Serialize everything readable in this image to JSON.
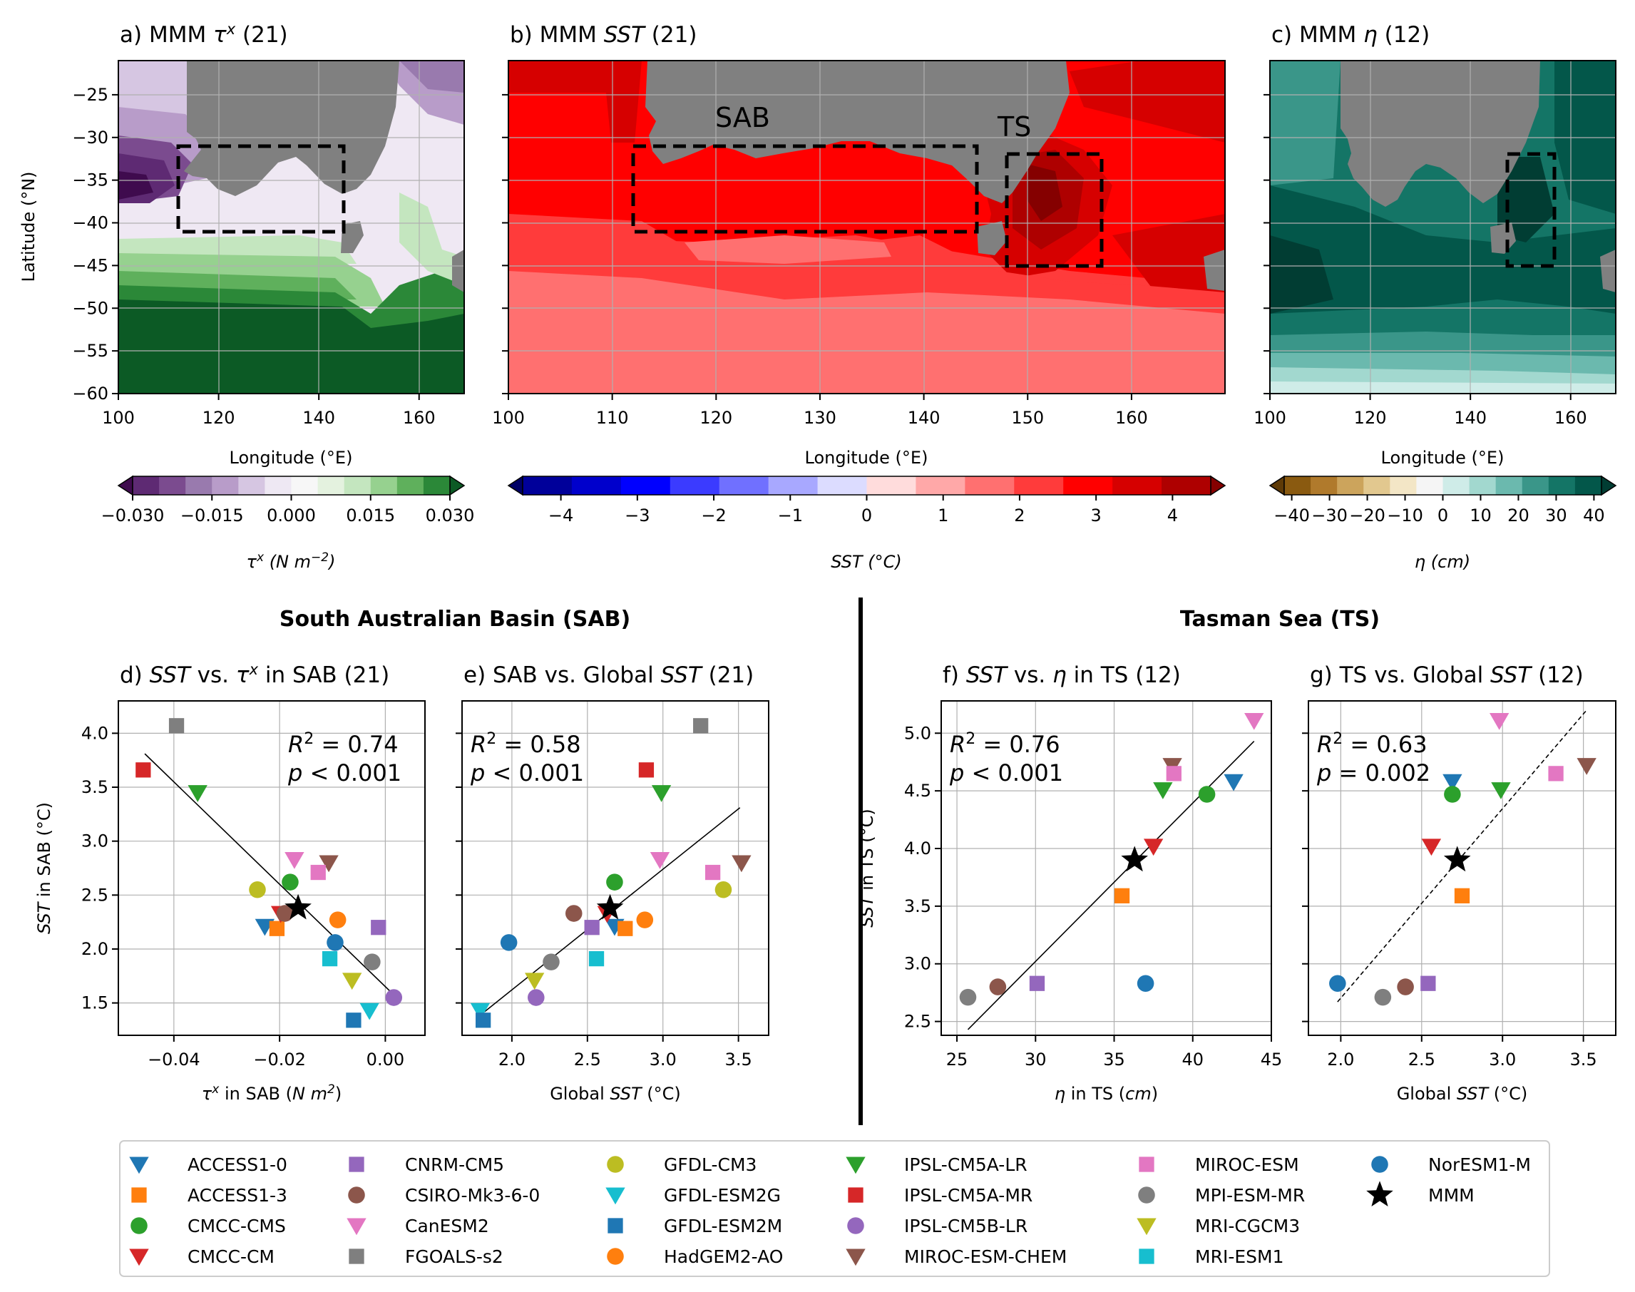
{
  "figure": {
    "maps": [
      {
        "id": "a",
        "title_prefix": "a) MMM ",
        "var": "τ",
        "var_sup": "x",
        "title_suffix": " (21)",
        "xlabel": "Longitude (°E)",
        "ylabel": "Latitude (°N)",
        "xticks": [
          "100",
          "120",
          "140",
          "160"
        ],
        "yticks": [
          "−25",
          "−30",
          "−35",
          "−40",
          "−45",
          "−50",
          "−55",
          "−60"
        ],
        "xlim": [
          100,
          169
        ],
        "ylim": [
          -60,
          -21
        ],
        "colorbar": {
          "label": "τx (N m−2)",
          "label_parts": [
            "τ",
            "x",
            " (N m",
            "−2",
            ")"
          ],
          "ticks": [
            "−0.030",
            "−0.015",
            "0.000",
            "0.015",
            "0.030"
          ],
          "range": [
            -0.03,
            0.03
          ],
          "colors": [
            "#3f0b4e",
            "#5e2a73",
            "#7b4b8f",
            "#997aae",
            "#b89cc9",
            "#d6c6e2",
            "#eee8f3",
            "#f7f7f7",
            "#e4f2df",
            "#c4e6bf",
            "#96d18f",
            "#5fb05c",
            "#2b8838",
            "#0c5a25"
          ]
        },
        "box": {
          "lon": [
            112,
            145
          ],
          "lat": [
            -41,
            -31
          ]
        }
      },
      {
        "id": "b",
        "title_prefix": "b) MMM ",
        "var": "SST",
        "title_suffix": " (21)",
        "xlabel": "Longitude (°E)",
        "xticks": [
          "100",
          "110",
          "120",
          "130",
          "140",
          "150",
          "160"
        ],
        "xlim": [
          100,
          169
        ],
        "ylim": [
          -60,
          -21
        ],
        "colorbar": {
          "label": "SST (°C)",
          "ticks": [
            "−4",
            "−3",
            "−2",
            "−1",
            "0",
            "1",
            "2",
            "3",
            "4"
          ],
          "range": [
            -4.5,
            4.5
          ],
          "colors": [
            "#000066",
            "#00009a",
            "#0000cc",
            "#0000ff",
            "#3b3bff",
            "#7070ff",
            "#a8a8ff",
            "#dcdcff",
            "#ffdcdc",
            "#ffa8a8",
            "#ff7070",
            "#ff3b3b",
            "#ff0000",
            "#d60000",
            "#ae0000",
            "#850000"
          ]
        },
        "box_sab": {
          "lon": [
            112,
            145
          ],
          "lat": [
            -41,
            -31
          ]
        },
        "box_ts": {
          "lon": [
            148,
            157
          ],
          "lat": [
            -45,
            -32
          ]
        },
        "region_labels": [
          "SAB",
          "TS"
        ]
      },
      {
        "id": "c",
        "title_prefix": "c) MMM ",
        "var": "η",
        "title_suffix": " (12)",
        "xlabel": "Longitude (°E)",
        "xticks": [
          "100",
          "120",
          "140",
          "160"
        ],
        "xlim": [
          100,
          169
        ],
        "ylim": [
          -60,
          -21
        ],
        "colorbar": {
          "label": "η (cm)",
          "ticks": [
            "−40",
            "−30",
            "−20",
            "−10",
            "0",
            "10",
            "20",
            "30",
            "40"
          ],
          "range": [
            -42,
            42
          ],
          "colors": [
            "#5e3a07",
            "#8a5a10",
            "#b07a2c",
            "#cca45c",
            "#e2c88f",
            "#f3e6c6",
            "#f5f5f5",
            "#cfece8",
            "#a2d8cf",
            "#6bb9ae",
            "#3a9689",
            "#147566",
            "#03574a",
            "#013d33"
          ]
        },
        "box": {
          "lon": [
            148,
            157
          ],
          "lat": [
            -45,
            -32
          ]
        }
      }
    ],
    "sections": [
      "South Australian Basin (SAB)",
      "Tasman Sea (TS)"
    ]
  },
  "chart_data": [
    {
      "id": "d",
      "type": "scatter",
      "title_parts": [
        "d) ",
        "SST",
        " vs. ",
        "τ",
        "x",
        " in SAB (21)"
      ],
      "xlabel_parts": [
        "τ",
        "x",
        " in SAB (",
        "N m",
        "2",
        ")"
      ],
      "ylabel_parts": [
        "SST",
        " in SAB (°C)"
      ],
      "xlim": [
        -0.0505,
        0.0075
      ],
      "ylim": [
        1.2,
        4.3
      ],
      "xticks": [
        -0.04,
        -0.02,
        0.0
      ],
      "xtick_labels": [
        "−0.04",
        "−0.02",
        "0.00"
      ],
      "yticks": [
        1.5,
        2.0,
        2.5,
        3.0,
        3.5,
        4.0
      ],
      "ytick_labels": [
        "1.5",
        "2.0",
        "2.5",
        "3.0",
        "3.5",
        "4.0"
      ],
      "annotation": {
        "r2": "R² = 0.74",
        "p": "p < 0.001",
        "r2_parts": [
          "R",
          "2",
          " = 0.74"
        ],
        "p_parts": [
          "p",
          " < 0.001"
        ]
      },
      "fit": {
        "x": [
          -0.0455,
          0.0015
        ],
        "y": [
          3.81,
          1.58
        ],
        "style": "solid"
      },
      "points": [
        {
          "model": "ACCESS1-0",
          "x": -0.0228,
          "y": 2.21
        },
        {
          "model": "ACCESS1-3",
          "x": -0.0205,
          "y": 2.19
        },
        {
          "model": "CMCC-CMS",
          "x": -0.018,
          "y": 2.62
        },
        {
          "model": "CMCC-CM",
          "x": -0.0198,
          "y": 2.33
        },
        {
          "model": "CNRM-CM5",
          "x": -0.0013,
          "y": 2.2
        },
        {
          "model": "CSIRO-Mk3-6-0",
          "x": -0.019,
          "y": 2.33
        },
        {
          "model": "CanESM2",
          "x": -0.0172,
          "y": 2.83
        },
        {
          "model": "FGOALS-s2",
          "x": -0.0395,
          "y": 4.07
        },
        {
          "model": "GFDL-CM3",
          "x": -0.0242,
          "y": 2.55
        },
        {
          "model": "GFDL-ESM2G",
          "x": -0.003,
          "y": 1.43
        },
        {
          "model": "GFDL-ESM2M",
          "x": -0.006,
          "y": 1.34
        },
        {
          "model": "HadGEM2-AO",
          "x": -0.009,
          "y": 2.27
        },
        {
          "model": "IPSL-CM5A-LR",
          "x": -0.0355,
          "y": 3.45
        },
        {
          "model": "IPSL-CM5A-MR",
          "x": -0.0458,
          "y": 3.66
        },
        {
          "model": "IPSL-CM5B-LR",
          "x": 0.0016,
          "y": 1.55
        },
        {
          "model": "MIROC-ESM-CHEM",
          "x": -0.0107,
          "y": 2.8
        },
        {
          "model": "MIROC-ESM",
          "x": -0.0127,
          "y": 2.71
        },
        {
          "model": "MPI-ESM-MR",
          "x": -0.0025,
          "y": 1.88
        },
        {
          "model": "MRI-CGCM3",
          "x": -0.0063,
          "y": 1.71
        },
        {
          "model": "MRI-ESM1",
          "x": -0.0105,
          "y": 1.91
        },
        {
          "model": "NorESM1-M",
          "x": -0.0095,
          "y": 2.06
        },
        {
          "model": "MMM",
          "x": -0.0165,
          "y": 2.38
        }
      ]
    },
    {
      "id": "e",
      "type": "scatter",
      "title_parts": [
        "e) SAB vs. Global ",
        "SST",
        " (21)"
      ],
      "xlabel_parts": [
        "Global ",
        "SST",
        " (°C)"
      ],
      "xlim": [
        1.67,
        3.7
      ],
      "ylim": [
        1.2,
        4.3
      ],
      "xticks": [
        2.0,
        2.5,
        3.0,
        3.5
      ],
      "xtick_labels": [
        "2.0",
        "2.5",
        "3.0",
        "3.5"
      ],
      "yticks": [
        1.5,
        2.0,
        2.5,
        3.0,
        3.5,
        4.0
      ],
      "ytick_labels": [],
      "annotation": {
        "r2": "R² = 0.58",
        "p": "p < 0.001",
        "r2_parts": [
          "R",
          "2",
          " = 0.58"
        ],
        "p_parts": [
          "p",
          " < 0.001"
        ]
      },
      "fit": {
        "x": [
          1.82,
          3.51
        ],
        "y": [
          1.42,
          3.31
        ],
        "style": "solid"
      },
      "points": [
        {
          "model": "ACCESS1-0",
          "x": 2.68,
          "y": 2.21
        },
        {
          "model": "ACCESS1-3",
          "x": 2.75,
          "y": 2.19
        },
        {
          "model": "CMCC-CMS",
          "x": 2.68,
          "y": 2.62
        },
        {
          "model": "CMCC-CM",
          "x": 2.63,
          "y": 2.33
        },
        {
          "model": "CNRM-CM5",
          "x": 2.53,
          "y": 2.2
        },
        {
          "model": "CSIRO-Mk3-6-0",
          "x": 2.41,
          "y": 2.33
        },
        {
          "model": "CanESM2",
          "x": 2.98,
          "y": 2.83
        },
        {
          "model": "FGOALS-s2",
          "x": 3.25,
          "y": 4.07
        },
        {
          "model": "GFDL-CM3",
          "x": 3.4,
          "y": 2.55
        },
        {
          "model": "GFDL-ESM2G",
          "x": 1.79,
          "y": 1.43
        },
        {
          "model": "GFDL-ESM2M",
          "x": 1.81,
          "y": 1.34
        },
        {
          "model": "HadGEM2-AO",
          "x": 2.88,
          "y": 2.27
        },
        {
          "model": "IPSL-CM5A-LR",
          "x": 2.99,
          "y": 3.45
        },
        {
          "model": "IPSL-CM5A-MR",
          "x": 2.89,
          "y": 3.66
        },
        {
          "model": "IPSL-CM5B-LR",
          "x": 2.16,
          "y": 1.55
        },
        {
          "model": "MIROC-ESM-CHEM",
          "x": 3.52,
          "y": 2.8
        },
        {
          "model": "MIROC-ESM",
          "x": 3.33,
          "y": 2.71
        },
        {
          "model": "MPI-ESM-MR",
          "x": 2.26,
          "y": 1.88
        },
        {
          "model": "MRI-CGCM3",
          "x": 2.15,
          "y": 1.71
        },
        {
          "model": "MRI-ESM1",
          "x": 2.56,
          "y": 1.91
        },
        {
          "model": "NorESM1-M",
          "x": 1.98,
          "y": 2.06
        },
        {
          "model": "MMM",
          "x": 2.65,
          "y": 2.38
        }
      ]
    },
    {
      "id": "f",
      "type": "scatter",
      "title_parts": [
        "f) ",
        "SST",
        " vs. ",
        "η",
        " in TS (12)"
      ],
      "xlabel_parts": [
        "η",
        " in TS (",
        "cm",
        ")"
      ],
      "ylabel_parts": [
        "SST",
        " in TS (°C)"
      ],
      "xlim": [
        24.0,
        45.0
      ],
      "ylim": [
        2.38,
        5.28
      ],
      "xticks": [
        25,
        30,
        35,
        40,
        45
      ],
      "xtick_labels": [
        "25",
        "30",
        "35",
        "40",
        "45"
      ],
      "yticks": [
        2.5,
        3.0,
        3.5,
        4.0,
        4.5,
        5.0
      ],
      "ytick_labels": [
        "2.5",
        "3.0",
        "3.5",
        "4.0",
        "4.5",
        "5.0"
      ],
      "annotation": {
        "r2": "R² = 0.76",
        "p": "p < 0.001",
        "r2_parts": [
          "R",
          "2",
          " = 0.76"
        ],
        "p_parts": [
          "p",
          " < 0.001"
        ]
      },
      "fit": {
        "x": [
          25.7,
          43.9
        ],
        "y": [
          2.43,
          4.93
        ],
        "style": "solid"
      },
      "points": [
        {
          "model": "ACCESS1-0",
          "x": 42.6,
          "y": 4.58
        },
        {
          "model": "ACCESS1-3",
          "x": 35.5,
          "y": 3.59
        },
        {
          "model": "CMCC-CMS",
          "x": 40.9,
          "y": 4.47
        },
        {
          "model": "CMCC-CM",
          "x": 37.5,
          "y": 4.02
        },
        {
          "model": "CNRM-CM5",
          "x": 30.1,
          "y": 2.83
        },
        {
          "model": "CSIRO-Mk3-6-0",
          "x": 27.6,
          "y": 2.8
        },
        {
          "model": "CanESM2",
          "x": 43.9,
          "y": 5.11
        },
        {
          "model": "IPSL-CM5A-LR",
          "x": 38.1,
          "y": 4.51
        },
        {
          "model": "MIROC-ESM-CHEM",
          "x": 38.7,
          "y": 4.72
        },
        {
          "model": "MIROC-ESM",
          "x": 38.8,
          "y": 4.65
        },
        {
          "model": "MPI-ESM-MR",
          "x": 25.7,
          "y": 2.71
        },
        {
          "model": "NorESM1-M",
          "x": 37.0,
          "y": 2.83
        },
        {
          "model": "MMM",
          "x": 36.3,
          "y": 3.9
        }
      ]
    },
    {
      "id": "g",
      "type": "scatter",
      "title_parts": [
        "g) TS vs. Global ",
        "SST",
        " (12)"
      ],
      "xlabel_parts": [
        "Global ",
        "SST",
        " (°C)"
      ],
      "xlim": [
        1.8,
        3.7
      ],
      "ylim": [
        2.38,
        5.28
      ],
      "xticks": [
        2.0,
        2.5,
        3.0,
        3.5
      ],
      "xtick_labels": [
        "2.0",
        "2.5",
        "3.0",
        "3.5"
      ],
      "yticks": [
        2.5,
        3.0,
        3.5,
        4.0,
        4.5,
        5.0
      ],
      "ytick_labels": [],
      "annotation": {
        "r2": "R² = 0.63",
        "p": "p = 0.002",
        "r2_parts": [
          "R",
          "2",
          " = 0.63"
        ],
        "p_parts": [
          "p",
          " = 0.002"
        ]
      },
      "fit": {
        "x": [
          1.98,
          3.52
        ],
        "y": [
          2.67,
          5.2
        ],
        "style": "dashed"
      },
      "points": [
        {
          "model": "ACCESS1-0",
          "x": 2.69,
          "y": 4.58
        },
        {
          "model": "ACCESS1-3",
          "x": 2.75,
          "y": 3.59
        },
        {
          "model": "CMCC-CMS",
          "x": 2.69,
          "y": 4.47
        },
        {
          "model": "CMCC-CM",
          "x": 2.56,
          "y": 4.02
        },
        {
          "model": "CNRM-CM5",
          "x": 2.54,
          "y": 2.83
        },
        {
          "model": "CSIRO-Mk3-6-0",
          "x": 2.4,
          "y": 2.8
        },
        {
          "model": "CanESM2",
          "x": 2.98,
          "y": 5.11
        },
        {
          "model": "IPSL-CM5A-LR",
          "x": 2.99,
          "y": 4.51
        },
        {
          "model": "MIROC-ESM-CHEM",
          "x": 3.52,
          "y": 4.72
        },
        {
          "model": "MIROC-ESM",
          "x": 3.33,
          "y": 4.65
        },
        {
          "model": "MPI-ESM-MR",
          "x": 2.26,
          "y": 2.71
        },
        {
          "model": "NorESM1-M",
          "x": 1.98,
          "y": 2.83
        },
        {
          "model": "MMM",
          "x": 2.72,
          "y": 3.9
        }
      ]
    }
  ],
  "legend": {
    "columns": 6,
    "entries": [
      {
        "model": "ACCESS1-0",
        "marker": "tri-down",
        "color": "#1f77b4"
      },
      {
        "model": "ACCESS1-3",
        "marker": "square",
        "color": "#ff7f0e"
      },
      {
        "model": "CMCC-CMS",
        "marker": "circle",
        "color": "#2ca02c"
      },
      {
        "model": "CMCC-CM",
        "marker": "tri-down",
        "color": "#d62728"
      },
      {
        "model": "CNRM-CM5",
        "marker": "square",
        "color": "#9467bd"
      },
      {
        "model": "CSIRO-Mk3-6-0",
        "marker": "circle",
        "color": "#8c564b"
      },
      {
        "model": "CanESM2",
        "marker": "tri-down",
        "color": "#e377c2"
      },
      {
        "model": "FGOALS-s2",
        "marker": "square",
        "color": "#7f7f7f"
      },
      {
        "model": "GFDL-CM3",
        "marker": "circle",
        "color": "#bcbd22"
      },
      {
        "model": "GFDL-ESM2G",
        "marker": "tri-down",
        "color": "#17becf"
      },
      {
        "model": "GFDL-ESM2M",
        "marker": "square",
        "color": "#1f77b4"
      },
      {
        "model": "HadGEM2-AO",
        "marker": "circle",
        "color": "#ff7f0e"
      },
      {
        "model": "IPSL-CM5A-LR",
        "marker": "tri-down",
        "color": "#2ca02c"
      },
      {
        "model": "IPSL-CM5A-MR",
        "marker": "square",
        "color": "#d62728"
      },
      {
        "model": "IPSL-CM5B-LR",
        "marker": "circle",
        "color": "#9467bd"
      },
      {
        "model": "MIROC-ESM-CHEM",
        "marker": "tri-down",
        "color": "#8c564b"
      },
      {
        "model": "MIROC-ESM",
        "marker": "square",
        "color": "#e377c2"
      },
      {
        "model": "MPI-ESM-MR",
        "marker": "circle",
        "color": "#7f7f7f"
      },
      {
        "model": "MRI-CGCM3",
        "marker": "tri-down",
        "color": "#bcbd22"
      },
      {
        "model": "MRI-ESM1",
        "marker": "square",
        "color": "#17becf"
      },
      {
        "model": "NorESM1-M",
        "marker": "circle",
        "color": "#1f77b4"
      },
      {
        "model": "MMM",
        "marker": "star",
        "color": "#000000"
      }
    ]
  }
}
